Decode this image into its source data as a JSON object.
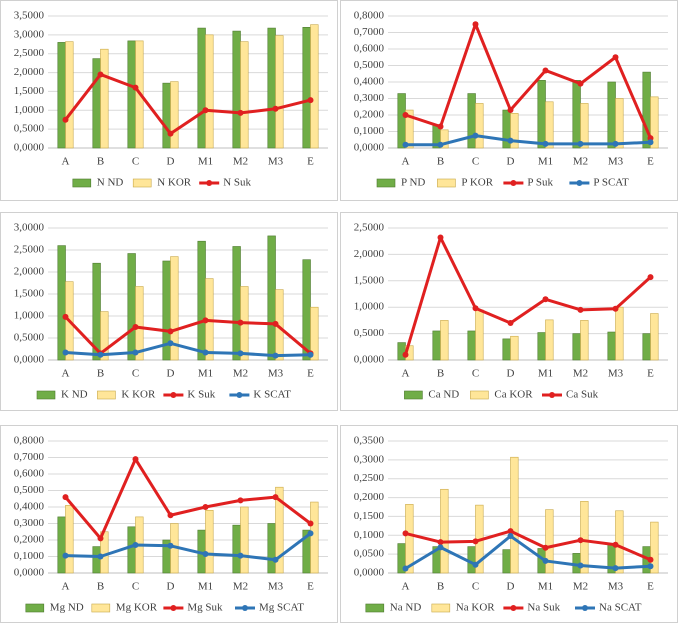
{
  "chart_data": [
    {
      "type": "combo",
      "categories": [
        "A",
        "B",
        "C",
        "D",
        "M1",
        "M2",
        "M3",
        "E"
      ],
      "ylim": [
        0,
        3.5
      ],
      "yticks": [
        {
          "value": 0,
          "label": "0,0000"
        },
        {
          "value": 0.5,
          "label": "0,5000"
        },
        {
          "value": 1,
          "label": "1,0000"
        },
        {
          "value": 1.5,
          "label": "1,5000"
        },
        {
          "value": 2,
          "label": "2,0000"
        },
        {
          "value": 2.5,
          "label": "2,5000"
        },
        {
          "value": 3,
          "label": "3,0000"
        },
        {
          "value": 3.5,
          "label": "3,5000"
        }
      ],
      "grid": true,
      "series": [
        {
          "name": "N ND",
          "kind": "bar",
          "color": "#70ad47",
          "values": [
            2.8,
            2.37,
            2.84,
            1.72,
            3.18,
            3.1,
            3.18,
            3.2
          ]
        },
        {
          "name": "N KOR",
          "kind": "bar",
          "color": "#ffe699",
          "values": [
            2.82,
            2.62,
            2.84,
            1.76,
            3.0,
            2.82,
            2.98,
            3.27
          ]
        },
        {
          "name": "N Suk",
          "kind": "line",
          "color": "#e02020",
          "values": [
            0.75,
            1.95,
            1.6,
            0.38,
            1.0,
            0.93,
            1.04,
            1.27
          ]
        }
      ]
    },
    {
      "type": "combo",
      "categories": [
        "A",
        "B",
        "C",
        "D",
        "M1",
        "M2",
        "M3",
        "E"
      ],
      "ylim": [
        0,
        0.8
      ],
      "yticks": [
        {
          "value": 0,
          "label": "0,0000"
        },
        {
          "value": 0.1,
          "label": "0,1000"
        },
        {
          "value": 0.2,
          "label": "0,2000"
        },
        {
          "value": 0.3,
          "label": "0,3000"
        },
        {
          "value": 0.4,
          "label": "0,4000"
        },
        {
          "value": 0.5,
          "label": "0,5000"
        },
        {
          "value": 0.6,
          "label": "0,6000"
        },
        {
          "value": 0.7,
          "label": "0,7000"
        },
        {
          "value": 0.8,
          "label": "0,8000"
        }
      ],
      "grid": true,
      "series": [
        {
          "name": "P ND",
          "kind": "bar",
          "color": "#70ad47",
          "values": [
            0.33,
            0.14,
            0.33,
            0.23,
            0.41,
            0.41,
            0.4,
            0.46
          ]
        },
        {
          "name": "P KOR",
          "kind": "bar",
          "color": "#ffe699",
          "values": [
            0.23,
            0.11,
            0.27,
            0.21,
            0.28,
            0.27,
            0.3,
            0.31
          ]
        },
        {
          "name": "P Suk",
          "kind": "line",
          "color": "#e02020",
          "values": [
            0.2,
            0.13,
            0.75,
            0.23,
            0.47,
            0.39,
            0.55,
            0.06
          ]
        },
        {
          "name": "P SCAT",
          "kind": "line",
          "color": "#2e75b6",
          "values": [
            0.02,
            0.02,
            0.075,
            0.045,
            0.025,
            0.025,
            0.025,
            0.035
          ]
        }
      ]
    },
    {
      "type": "combo",
      "categories": [
        "A",
        "B",
        "C",
        "D",
        "M1",
        "M2",
        "M3",
        "E"
      ],
      "ylim": [
        0,
        3
      ],
      "yticks": [
        {
          "value": 0,
          "label": "0,0000"
        },
        {
          "value": 0.5,
          "label": "0,5000"
        },
        {
          "value": 1,
          "label": "1,0000"
        },
        {
          "value": 1.5,
          "label": "1,5000"
        },
        {
          "value": 2,
          "label": "2,0000"
        },
        {
          "value": 2.5,
          "label": "2,5000"
        },
        {
          "value": 3,
          "label": "3,0000"
        }
      ],
      "grid": true,
      "series": [
        {
          "name": "K ND",
          "kind": "bar",
          "color": "#70ad47",
          "values": [
            2.6,
            2.2,
            2.42,
            2.25,
            2.7,
            2.58,
            2.82,
            2.28
          ]
        },
        {
          "name": "K KOR",
          "kind": "bar",
          "color": "#ffe699",
          "values": [
            1.78,
            1.1,
            1.67,
            2.35,
            1.85,
            1.67,
            1.6,
            1.2
          ]
        },
        {
          "name": "K Suk",
          "kind": "line",
          "color": "#e02020",
          "values": [
            0.98,
            0.15,
            0.75,
            0.65,
            0.9,
            0.85,
            0.82,
            0.15
          ]
        },
        {
          "name": "K SCAT",
          "kind": "line",
          "color": "#2e75b6",
          "values": [
            0.17,
            0.12,
            0.17,
            0.38,
            0.17,
            0.15,
            0.1,
            0.12
          ]
        }
      ]
    },
    {
      "type": "combo",
      "categories": [
        "A",
        "B",
        "C",
        "D",
        "M1",
        "M2",
        "M3",
        "E"
      ],
      "ylim": [
        0,
        2.5
      ],
      "yticks": [
        {
          "value": 0,
          "label": "0,0000"
        },
        {
          "value": 0.5,
          "label": "0,5000"
        },
        {
          "value": 1,
          "label": "1,0000"
        },
        {
          "value": 1.5,
          "label": "1,5000"
        },
        {
          "value": 2,
          "label": "2,0000"
        },
        {
          "value": 2.5,
          "label": "2,5000"
        }
      ],
      "grid": true,
      "series": [
        {
          "name": "Ca ND",
          "kind": "bar",
          "color": "#70ad47",
          "values": [
            0.33,
            0.55,
            0.55,
            0.4,
            0.52,
            0.5,
            0.53,
            0.5
          ]
        },
        {
          "name": "Ca KOR",
          "kind": "bar",
          "color": "#ffe699",
          "values": [
            0.27,
            0.75,
            0.95,
            0.45,
            0.76,
            0.75,
            1.0,
            0.88
          ]
        },
        {
          "name": "Ca Suk",
          "kind": "line",
          "color": "#e02020",
          "values": [
            0.1,
            2.32,
            0.98,
            0.7,
            1.15,
            0.95,
            0.97,
            1.57
          ]
        }
      ]
    },
    {
      "type": "combo",
      "categories": [
        "A",
        "B",
        "C",
        "D",
        "M1",
        "M2",
        "M3",
        "E"
      ],
      "ylim": [
        0,
        0.8
      ],
      "yticks": [
        {
          "value": 0,
          "label": "0,0000"
        },
        {
          "value": 0.1,
          "label": "0,1000"
        },
        {
          "value": 0.2,
          "label": "0,2000"
        },
        {
          "value": 0.3,
          "label": "0,3000"
        },
        {
          "value": 0.4,
          "label": "0,4000"
        },
        {
          "value": 0.5,
          "label": "0,5000"
        },
        {
          "value": 0.6,
          "label": "0,6000"
        },
        {
          "value": 0.7,
          "label": "0,7000"
        },
        {
          "value": 0.8,
          "label": "0,8000"
        }
      ],
      "grid": true,
      "series": [
        {
          "name": "Mg ND",
          "kind": "bar",
          "color": "#70ad47",
          "values": [
            0.34,
            0.16,
            0.28,
            0.2,
            0.26,
            0.29,
            0.3,
            0.26
          ]
        },
        {
          "name": "Mg KOR",
          "kind": "bar",
          "color": "#ffe699",
          "values": [
            0.41,
            0.25,
            0.34,
            0.3,
            0.38,
            0.4,
            0.52,
            0.43
          ]
        },
        {
          "name": "Mg Suk",
          "kind": "line",
          "color": "#e02020",
          "values": [
            0.46,
            0.21,
            0.69,
            0.35,
            0.4,
            0.44,
            0.46,
            0.3
          ]
        },
        {
          "name": "Mg SCAT",
          "kind": "line",
          "color": "#2e75b6",
          "values": [
            0.105,
            0.1,
            0.17,
            0.165,
            0.115,
            0.105,
            0.08,
            0.24
          ]
        }
      ]
    },
    {
      "type": "combo",
      "categories": [
        "A",
        "B",
        "C",
        "D",
        "M1",
        "M2",
        "M3",
        "E"
      ],
      "ylim": [
        0,
        0.35
      ],
      "yticks": [
        {
          "value": 0,
          "label": "0,0000"
        },
        {
          "value": 0.05,
          "label": "0,0500"
        },
        {
          "value": 0.1,
          "label": "0,1000"
        },
        {
          "value": 0.15,
          "label": "0,1500"
        },
        {
          "value": 0.2,
          "label": "0,2000"
        },
        {
          "value": 0.25,
          "label": "0,2500"
        },
        {
          "value": 0.3,
          "label": "0,3000"
        },
        {
          "value": 0.35,
          "label": "0,3500"
        }
      ],
      "grid": true,
      "series": [
        {
          "name": "Na ND",
          "kind": "bar",
          "color": "#70ad47",
          "values": [
            0.078,
            0.07,
            0.07,
            0.062,
            0.065,
            0.052,
            0.075,
            0.07
          ]
        },
        {
          "name": "Na KOR",
          "kind": "bar",
          "color": "#ffe699",
          "values": [
            0.182,
            0.222,
            0.18,
            0.307,
            0.168,
            0.19,
            0.165,
            0.135
          ]
        },
        {
          "name": "Na Suk",
          "kind": "line",
          "color": "#e02020",
          "values": [
            0.105,
            0.082,
            0.084,
            0.111,
            0.067,
            0.087,
            0.075,
            0.035
          ]
        },
        {
          "name": "Na SCAT",
          "kind": "line",
          "color": "#2e75b6",
          "values": [
            0.012,
            0.068,
            0.022,
            0.098,
            0.032,
            0.02,
            0.013,
            0.018
          ]
        }
      ]
    }
  ]
}
